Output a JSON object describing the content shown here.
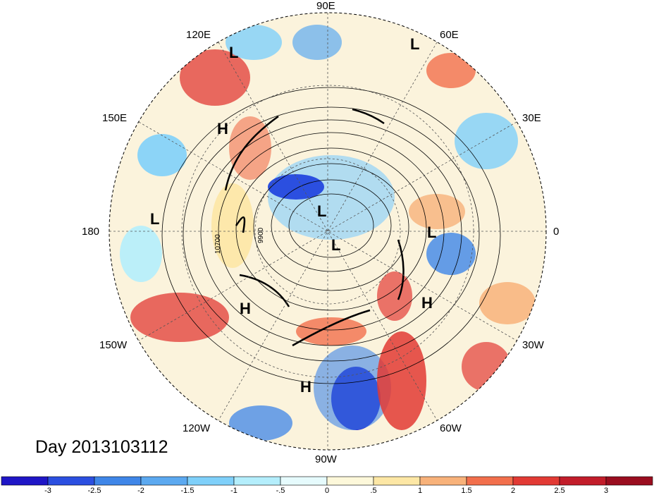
{
  "title": "Day 2013103112",
  "longitude_labels": {
    "lon_90e": "90E",
    "lon_60e": "60E",
    "lon_120e": "120E",
    "lon_150e": "150E",
    "lon_30e": "30E",
    "lon_180": "180",
    "lon_0": "0",
    "lon_150w": "150W",
    "lon_30w": "30W",
    "lon_120w": "120W",
    "lon_60w": "60W",
    "lon_90w": "90W"
  },
  "contour_labels": [
    "10700",
    "9900"
  ],
  "pressure_centers": [
    {
      "label": "L"
    },
    {
      "label": "L"
    },
    {
      "label": "H"
    },
    {
      "label": "L"
    },
    {
      "label": "L"
    },
    {
      "label": "L"
    },
    {
      "label": "L"
    },
    {
      "label": "H"
    },
    {
      "label": "H"
    },
    {
      "label": "H"
    }
  ],
  "colorbar": {
    "ticks": [
      "-3",
      "-2.5",
      "-2",
      "-1.5",
      "-1",
      "-.5",
      "0",
      ".5",
      "1",
      "1.5",
      "2",
      "2.5",
      "3"
    ],
    "colors": [
      "#1f16c6",
      "#2b4fe0",
      "#3f86e8",
      "#5ca9f0",
      "#7fd0fa",
      "#b4eefc",
      "#e6fbfd",
      "#fdf8da",
      "#fde7a5",
      "#f8b27a",
      "#f26f4c",
      "#e23a34",
      "#c21d2a",
      "#9a0d1f"
    ]
  }
}
